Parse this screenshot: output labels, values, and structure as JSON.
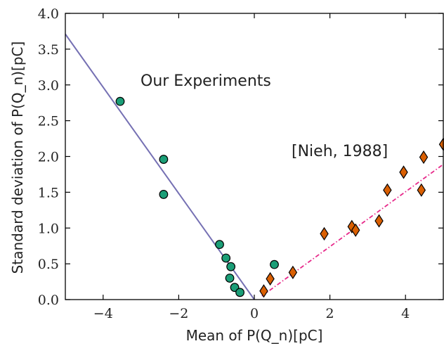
{
  "chart_data": {
    "type": "scatter",
    "xlabel": "Mean of P(Q_n)[pC]",
    "ylabel": "Standard deviation of P(Q_n)[pC]",
    "xlim": [
      -5,
      5
    ],
    "ylim": [
      0,
      4
    ],
    "x_ticks": [
      -4,
      -2,
      0,
      2,
      4
    ],
    "y_ticks": [
      0.0,
      0.5,
      1.0,
      1.5,
      2.0,
      2.5,
      3.0,
      3.5,
      4.0
    ],
    "x_tick_labels": [
      "−4",
      "−2",
      "0",
      "2",
      "4"
    ],
    "y_tick_labels": [
      "0.0",
      "0.5",
      "1.0",
      "1.5",
      "2.0",
      "2.5",
      "3.0",
      "3.5",
      "4.0"
    ],
    "grid": false,
    "annotations": [
      "Our Experiments",
      "[Nieh, 1988]"
    ],
    "series": [
      {
        "marker": "circle",
        "color": "#1b9e77",
        "points": [
          [
            -3.55,
            2.77
          ],
          [
            -2.4,
            1.96
          ],
          [
            -2.4,
            1.47
          ],
          [
            -0.92,
            0.77
          ],
          [
            -0.75,
            0.58
          ],
          [
            -0.62,
            0.46
          ],
          [
            -0.65,
            0.3
          ],
          [
            -0.52,
            0.17
          ],
          [
            -0.38,
            0.1
          ],
          [
            0.53,
            0.49
          ]
        ]
      },
      {
        "marker": "diamond",
        "color": "#d95f02",
        "points": [
          [
            0.25,
            0.12
          ],
          [
            0.42,
            0.29
          ],
          [
            1.02,
            0.38
          ],
          [
            1.85,
            0.92
          ],
          [
            2.58,
            1.02
          ],
          [
            2.68,
            0.97
          ],
          [
            3.3,
            1.1
          ],
          [
            3.52,
            1.53
          ],
          [
            3.95,
            1.78
          ],
          [
            4.42,
            1.53
          ],
          [
            4.48,
            1.99
          ],
          [
            5.0,
            2.17
          ]
        ]
      }
    ],
    "lines": [
      {
        "style": "solid",
        "color": "#7570b3",
        "from": [
          -5,
          3.71
        ],
        "to": [
          0,
          0
        ]
      },
      {
        "style": "dashdot",
        "color": "#e7298a",
        "from": [
          0.2,
          0.05
        ],
        "to": [
          5,
          1.89
        ]
      }
    ]
  }
}
